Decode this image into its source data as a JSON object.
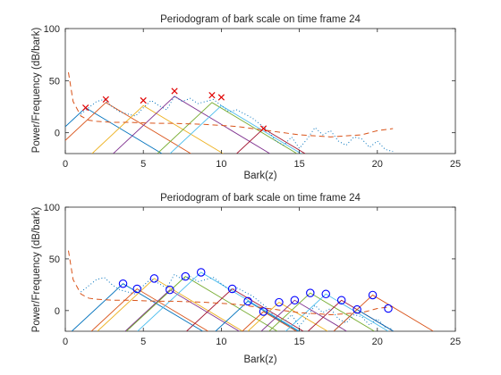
{
  "chart_data": [
    {
      "type": "line",
      "title": "Periodogram of bark scale on time frame 24",
      "xlabel": "Bark(z)",
      "ylabel": "Power/Frequency (dB/bark)",
      "xlim": [
        0,
        25
      ],
      "ylim": [
        -20,
        100
      ],
      "xticks": [
        0,
        5,
        10,
        15,
        20,
        25
      ],
      "yticks": [
        0,
        50,
        100
      ],
      "grid": false,
      "psd_dotted": {
        "x": [
          1.0,
          1.5,
          2.0,
          2.5,
          3.0,
          3.5,
          4.0,
          4.5,
          5.0,
          5.5,
          6.0,
          6.5,
          7.0,
          7.5,
          8.0,
          8.5,
          9.0,
          9.5,
          10.0,
          10.5,
          11.0,
          11.5,
          12.0,
          12.5,
          13.0,
          13.5,
          14.0,
          14.5,
          15.0,
          15.5,
          16.0,
          16.5,
          17.0,
          17.5,
          18.0,
          18.5,
          19.0,
          19.5,
          20.0,
          20.5,
          21.0
        ],
        "y": [
          18,
          24,
          30,
          32,
          25,
          20,
          18,
          16,
          24,
          31,
          26,
          22,
          35,
          30,
          33,
          28,
          30,
          32,
          26,
          20,
          22,
          18,
          14,
          8,
          2,
          -8,
          -12,
          -4,
          -15,
          -6,
          5,
          -2,
          2,
          -8,
          -12,
          -4,
          -6,
          -14,
          -8,
          -16,
          -18
        ]
      },
      "threshold_dashed": {
        "x": [
          0.2,
          0.5,
          1,
          1.5,
          2,
          3,
          4,
          5,
          6,
          7,
          8,
          9,
          10,
          11,
          12,
          13,
          14,
          15,
          16,
          17,
          18,
          19,
          20,
          21
        ],
        "y": [
          58,
          30,
          16,
          12,
          11,
          10,
          10,
          9.5,
          9,
          9,
          8.5,
          8,
          7,
          6,
          4,
          2,
          0,
          -2,
          -3,
          -4,
          -3,
          -2,
          2,
          4
        ]
      },
      "triangles": {
        "colors": [
          "#0072BD",
          "#D95319",
          "#EDB120",
          "#7E2F8E",
          "#77AC30",
          "#4DBEEE",
          "#A2142F"
        ],
        "peaks": [
          1.3,
          2.6,
          5.0,
          7.0,
          9.4,
          10.0,
          12.7
        ],
        "heights": [
          24,
          29,
          26,
          35,
          29,
          26,
          4
        ],
        "left_slope": 14,
        "right_slope": 9
      },
      "markers": {
        "shape": "x",
        "color": "#e00000",
        "x": [
          1.3,
          2.6,
          5.0,
          7.0,
          9.4,
          10.0,
          12.7
        ],
        "y": [
          24,
          32,
          31,
          40,
          36,
          34,
          4
        ]
      }
    },
    {
      "type": "line",
      "title": "Periodogram of bark scale on time frame 24",
      "xlabel": "Bark(z)",
      "ylabel": "Power/Frequency (dB/bark)",
      "xlim": [
        0,
        25
      ],
      "ylim": [
        -20,
        100
      ],
      "xticks": [
        0,
        5,
        10,
        15,
        20,
        25
      ],
      "yticks": [
        0,
        50,
        100
      ],
      "grid": false,
      "psd_dotted": {
        "x": [
          1.0,
          1.5,
          2.0,
          2.5,
          3.0,
          3.5,
          4.0,
          4.5,
          5.0,
          5.5,
          6.0,
          6.5,
          7.0,
          7.5,
          8.0,
          8.5,
          9.0,
          9.5,
          10.0,
          10.5,
          11.0,
          11.5,
          12.0,
          12.5,
          13.0,
          13.5,
          14.0,
          14.5,
          15.0,
          15.5,
          16.0,
          16.5,
          17.0,
          17.5,
          18.0,
          18.5,
          19.0,
          19.5,
          20.0,
          20.5,
          21.0
        ],
        "y": [
          18,
          24,
          30,
          32,
          25,
          20,
          18,
          16,
          24,
          31,
          26,
          22,
          35,
          30,
          33,
          28,
          30,
          32,
          26,
          20,
          22,
          18,
          14,
          8,
          2,
          -8,
          -12,
          -4,
          -15,
          -6,
          5,
          -2,
          2,
          -8,
          -12,
          -4,
          -6,
          -14,
          -8,
          -16,
          -18
        ]
      },
      "threshold_dashed": {
        "x": [
          0.2,
          0.5,
          1,
          1.5,
          2,
          3,
          4,
          5,
          6,
          7,
          8,
          9,
          10,
          11,
          12,
          13,
          14,
          15,
          16,
          17,
          18,
          19,
          20,
          21
        ],
        "y": [
          58,
          30,
          16,
          12,
          11,
          10,
          10,
          9.5,
          9,
          9,
          8.5,
          8,
          7,
          6,
          4,
          2,
          0,
          -2,
          -3,
          -4,
          -3,
          -2,
          2,
          4
        ]
      },
      "triangles": {
        "colors": [
          "#0072BD",
          "#D95319",
          "#EDB120",
          "#7E2F8E",
          "#77AC30",
          "#4DBEEE",
          "#A2142F"
        ],
        "peaks": [
          3.7,
          4.6,
          5.7,
          6.7,
          7.7,
          8.7,
          10.7,
          11.7,
          12.7,
          13.7,
          14.7,
          15.7,
          16.7,
          17.7,
          18.7,
          19.7
        ],
        "heights": [
          26,
          21,
          31,
          20,
          33,
          37,
          21,
          9,
          -1,
          8,
          10,
          17,
          16,
          10,
          1,
          15
        ],
        "left_slope": 14,
        "right_slope": 9
      },
      "markers": {
        "shape": "o",
        "color": "#0000ff",
        "x": [
          3.7,
          4.6,
          5.7,
          6.7,
          7.7,
          8.7,
          10.7,
          11.7,
          12.7,
          13.7,
          14.7,
          15.7,
          16.7,
          17.7,
          18.7,
          19.7,
          20.7
        ],
        "y": [
          26,
          21,
          31,
          20,
          33,
          37,
          21,
          9,
          -1,
          8,
          10,
          17,
          16,
          10,
          1,
          15,
          2
        ]
      }
    }
  ]
}
